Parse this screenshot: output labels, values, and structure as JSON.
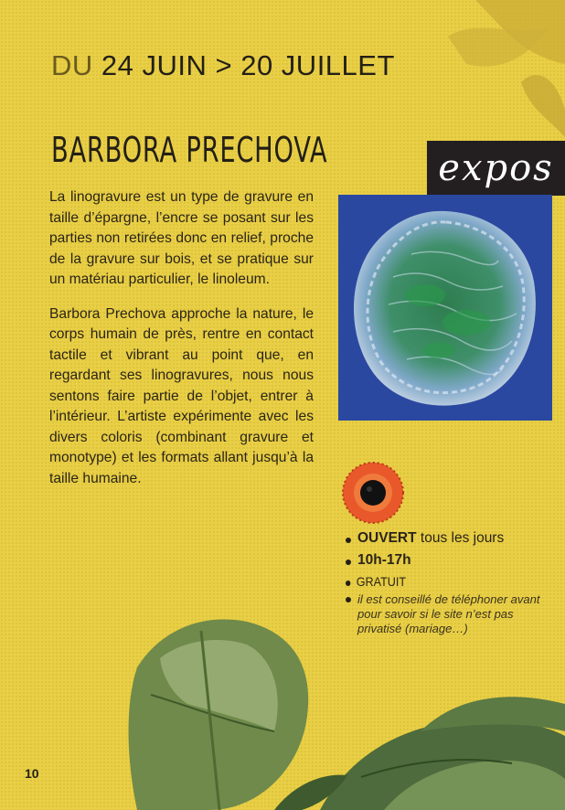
{
  "header": {
    "date_prefix": "DU",
    "date_range": "24 JUIN > 20 JUILLET"
  },
  "artist": {
    "name": "BARBORA PRECHOVA"
  },
  "section_tag": {
    "label": "expos"
  },
  "body": {
    "paragraphs": [
      "La linogravure est un type de gravure en taille d’épargne, l’encre se posant sur les parties non retirées donc en relief, proche de la gravure sur bois, et se pratique sur un matériau particulier, le linoleum.",
      "Barbora Prechova approche la nature, le corps humain de près, rentre en contact tactile et vibrant au point que, en regardant ses linogravures, nous nous sentons faire partie de l’objet, entrer à l’intérieur. L’artiste expérimente avec les divers coloris (combinant gravure et monotype) et les formats allant jusqu’à la taille humaine."
    ]
  },
  "info": {
    "open_bold": "OUVERT",
    "open_rest": " tous les jours",
    "hours": "10h-17h",
    "price": "GRATUIT",
    "note": "il est conseillé de téléphoner avant pour savoir si le site n’est pas privatisé (mariage…)"
  },
  "footer": {
    "page_number": "10"
  },
  "colors": {
    "background": "#e9cf45",
    "tag_background": "#231f20",
    "artwork_blue": "#2f4fa8",
    "artwork_green": "#3b8c52",
    "eye_orange": "#e8582a"
  },
  "icons": {
    "eye": "eye-icon"
  }
}
